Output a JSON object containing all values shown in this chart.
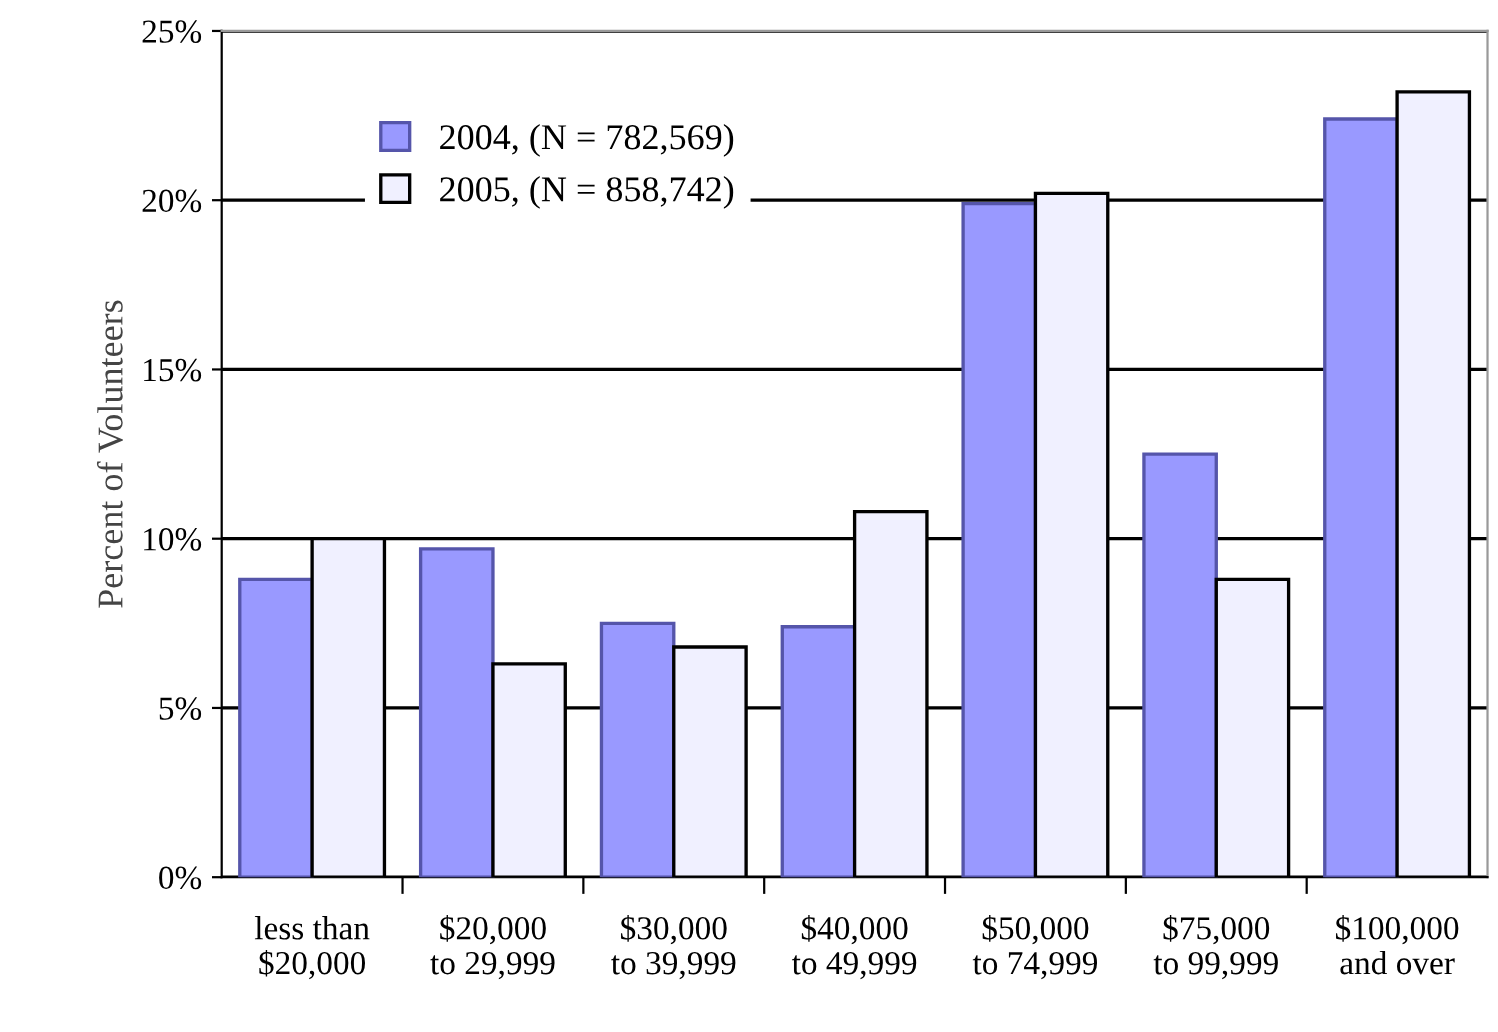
{
  "chart_data": {
    "type": "bar",
    "ylabel": "Percent of Volunteers",
    "categories": [
      "less than\n$20,000",
      "$20,000\nto 29,999",
      "$30,000\nto 39,999",
      "$40,000\nto 49,999",
      "$50,000\nto 74,999",
      "$75,000\nto 99,999",
      "$100,000\nand over"
    ],
    "series": [
      {
        "name": "2004, (N = 782,569)",
        "color": "#9999ff",
        "values": [
          8.8,
          9.7,
          7.5,
          7.4,
          19.9,
          12.5,
          22.4
        ]
      },
      {
        "name": "2005, (N = 858,742)",
        "color": "#f0f0ff",
        "values": [
          10.0,
          6.3,
          6.8,
          10.8,
          20.2,
          8.8,
          23.2
        ]
      }
    ],
    "ylim": [
      0,
      25
    ],
    "yticks": [
      {
        "value": 0,
        "label": "0%"
      },
      {
        "value": 5,
        "label": "5%"
      },
      {
        "value": 10,
        "label": "10%"
      },
      {
        "value": 15,
        "label": "15%"
      },
      {
        "value": 20,
        "label": "20%"
      },
      {
        "value": 25,
        "label": "25%"
      }
    ],
    "grid": "y",
    "legend": "top left"
  }
}
